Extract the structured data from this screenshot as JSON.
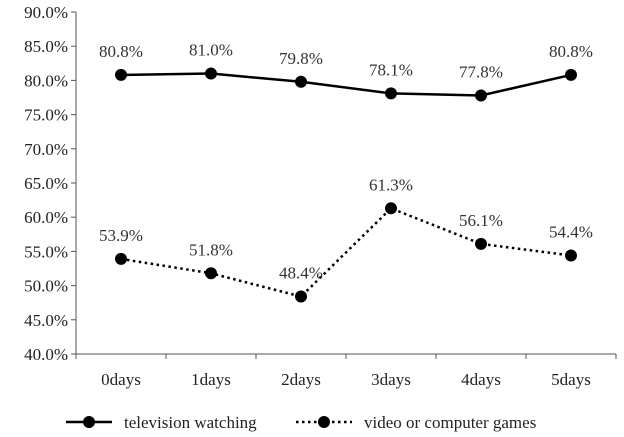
{
  "chart_data": {
    "type": "line",
    "title": "",
    "xlabel": "",
    "ylabel": "",
    "categories": [
      "0days",
      "1days",
      "2days",
      "3days",
      "4days",
      "5days"
    ],
    "ylim": [
      40.0,
      90.0
    ],
    "yticks": [
      40.0,
      45.0,
      50.0,
      55.0,
      60.0,
      65.0,
      70.0,
      75.0,
      80.0,
      85.0,
      90.0
    ],
    "ytick_labels": [
      "40.0%",
      "45.0%",
      "50.0%",
      "55.0%",
      "60.0%",
      "65.0%",
      "70.0%",
      "75.0%",
      "80.0%",
      "85.0%",
      "90.0%"
    ],
    "grid": false,
    "legend_position": "bottom",
    "series": [
      {
        "name": "television watching",
        "style": "solid",
        "color": "#000000",
        "values": [
          80.8,
          81.0,
          79.8,
          78.1,
          77.8,
          80.8
        ],
        "labels": [
          "80.8%",
          "81.0%",
          "79.8%",
          "78.1%",
          "77.8%",
          "80.8%"
        ]
      },
      {
        "name": "video or computer games",
        "style": "dotted",
        "color": "#000000",
        "values": [
          53.9,
          51.8,
          48.4,
          61.3,
          56.1,
          54.4
        ],
        "labels": [
          "53.9%",
          "51.8%",
          "48.4%",
          "61.3%",
          "56.1%",
          "54.4%"
        ]
      }
    ]
  }
}
